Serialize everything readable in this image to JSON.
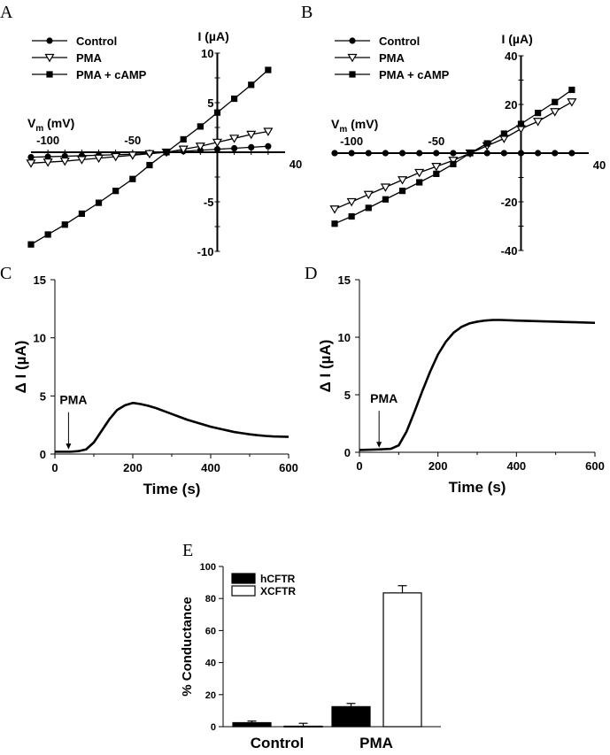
{
  "chart_data": [
    {
      "panel": "A",
      "type": "line",
      "xlabel": "V",
      "xlabel_sub": "m",
      "xlabel_unit": " (mV)",
      "ylabel": "I (µA)",
      "xlim": [
        -110,
        40
      ],
      "ylim": [
        -10,
        10
      ],
      "x_ticks": [
        -100,
        -50,
        40
      ],
      "y_ticks": [
        10,
        5,
        -5,
        -10
      ],
      "legend_position": "top-left",
      "series": [
        {
          "name": "Control",
          "marker": "circle",
          "x": [
            -110,
            -100,
            -90,
            -80,
            -70,
            -60,
            -50,
            -40,
            -30,
            -20,
            -10,
            0,
            10,
            20,
            30
          ],
          "y": [
            -0.5,
            -0.45,
            -0.4,
            -0.35,
            -0.3,
            -0.25,
            -0.2,
            -0.1,
            0,
            0.1,
            0.2,
            0.3,
            0.4,
            0.5,
            0.6
          ]
        },
        {
          "name": "PMA",
          "marker": "triangle-open",
          "x": [
            -110,
            -100,
            -90,
            -80,
            -70,
            -60,
            -50,
            -40,
            -30,
            -20,
            -10,
            0,
            10,
            20,
            30
          ],
          "y": [
            -1.1,
            -1.0,
            -0.9,
            -0.75,
            -0.6,
            -0.45,
            -0.3,
            -0.15,
            0,
            0.3,
            0.6,
            1.0,
            1.4,
            1.8,
            2.1
          ]
        },
        {
          "name": "PMA + cAMP",
          "marker": "square",
          "x": [
            -110,
            -100,
            -90,
            -80,
            -70,
            -60,
            -50,
            -40,
            -30,
            -20,
            -10,
            0,
            10,
            20,
            30
          ],
          "y": [
            -9.3,
            -8.3,
            -7.3,
            -6.2,
            -5.1,
            -3.9,
            -2.7,
            -1.3,
            0,
            1.3,
            2.6,
            4.0,
            5.4,
            6.8,
            8.3
          ]
        }
      ]
    },
    {
      "panel": "B",
      "type": "line",
      "xlabel": "V",
      "xlabel_sub": "m",
      "xlabel_unit": " (mV)",
      "ylabel": "I (µA)",
      "xlim": [
        -110,
        40
      ],
      "ylim": [
        -40,
        40
      ],
      "x_ticks": [
        -100,
        -50,
        40
      ],
      "y_ticks": [
        40,
        20,
        -20,
        -40
      ],
      "legend_position": "top-left",
      "series": [
        {
          "name": "Control",
          "marker": "circle",
          "x": [
            -110,
            -100,
            -90,
            -80,
            -70,
            -60,
            -50,
            -40,
            -30,
            -20,
            -10,
            0,
            10,
            20,
            30
          ],
          "y": [
            0,
            0,
            0,
            0,
            0,
            0,
            0,
            0,
            0,
            0,
            0,
            0,
            0,
            0,
            0
          ]
        },
        {
          "name": "PMA",
          "marker": "triangle-open",
          "x": [
            -110,
            -100,
            -90,
            -80,
            -70,
            -60,
            -50,
            -40,
            -30,
            -20,
            -10,
            0,
            10,
            20,
            30
          ],
          "y": [
            -23,
            -20,
            -17,
            -14,
            -11,
            -8,
            -5.5,
            -3,
            0,
            3,
            6,
            10,
            13,
            17,
            21
          ]
        },
        {
          "name": "PMA + cAMP",
          "marker": "square",
          "x": [
            -110,
            -100,
            -90,
            -80,
            -70,
            -60,
            -50,
            -40,
            -30,
            -20,
            -10,
            0,
            10,
            20,
            30
          ],
          "y": [
            -29,
            -26,
            -22.5,
            -19,
            -15.5,
            -12,
            -8.5,
            -4.5,
            0,
            4,
            8,
            12,
            16.5,
            21,
            26
          ]
        }
      ]
    },
    {
      "panel": "C",
      "type": "line",
      "xlabel": "Time (s)",
      "ylabel": "Δ I (µA)",
      "xlim": [
        0,
        600
      ],
      "ylim": [
        0,
        15
      ],
      "x_ticks": [
        0,
        200,
        400,
        600
      ],
      "y_ticks": [
        0,
        5,
        10,
        15
      ],
      "annotation": "PMA",
      "annotation_x": 35,
      "series": [
        {
          "x": [
            0,
            40,
            60,
            80,
            100,
            120,
            140,
            160,
            180,
            200,
            220,
            240,
            260,
            280,
            300,
            320,
            340,
            360,
            380,
            400,
            420,
            440,
            460,
            480,
            500,
            520,
            540,
            560,
            580,
            600
          ],
          "y": [
            0.2,
            0.2,
            0.25,
            0.4,
            1.0,
            2.0,
            3.0,
            3.8,
            4.2,
            4.4,
            4.3,
            4.15,
            3.95,
            3.7,
            3.45,
            3.2,
            2.95,
            2.75,
            2.55,
            2.35,
            2.2,
            2.05,
            1.9,
            1.8,
            1.7,
            1.62,
            1.56,
            1.52,
            1.5,
            1.48
          ]
        }
      ]
    },
    {
      "panel": "D",
      "type": "line",
      "xlabel": "Time (s)",
      "ylabel": "Δ I (µA)",
      "xlim": [
        0,
        600
      ],
      "ylim": [
        0,
        15
      ],
      "x_ticks": [
        0,
        200,
        400,
        600
      ],
      "y_ticks": [
        0,
        5,
        10,
        15
      ],
      "annotation": "PMA",
      "annotation_x": 50,
      "series": [
        {
          "x": [
            0,
            50,
            80,
            100,
            120,
            140,
            160,
            180,
            200,
            220,
            240,
            260,
            280,
            300,
            320,
            340,
            360,
            400,
            450,
            500,
            550,
            600
          ],
          "y": [
            0.2,
            0.25,
            0.3,
            0.6,
            1.8,
            3.5,
            5.3,
            7.0,
            8.5,
            9.6,
            10.4,
            10.9,
            11.2,
            11.35,
            11.45,
            11.5,
            11.5,
            11.45,
            11.4,
            11.35,
            11.3,
            11.25
          ]
        }
      ]
    },
    {
      "panel": "E",
      "type": "bar",
      "ylabel": "% Conductance",
      "ylim": [
        0,
        100
      ],
      "y_ticks": [
        0,
        20,
        40,
        60,
        80,
        100
      ],
      "categories": [
        "Control",
        "PMA"
      ],
      "legend_position": "top-left",
      "series": [
        {
          "name": "hCFTR",
          "fill": "#000000",
          "values": [
            2.5,
            12.5
          ],
          "errors": [
            1.0,
            2.0
          ]
        },
        {
          "name": "XCFTR",
          "fill": "#ffffff",
          "values": [
            0.3,
            83.5
          ],
          "errors": [
            1.8,
            4.5
          ]
        }
      ]
    }
  ]
}
